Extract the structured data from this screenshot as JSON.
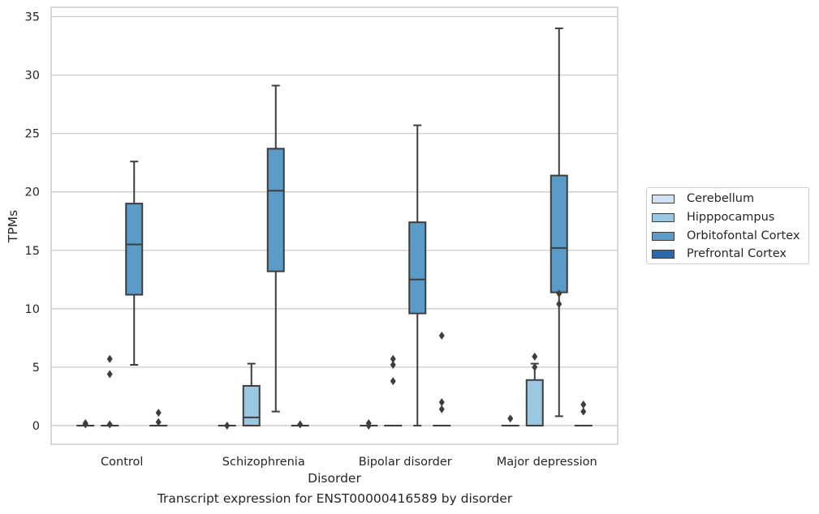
{
  "chart_data": {
    "type": "box",
    "title": "",
    "caption": "Transcript expression for ENST00000416589 by disorder",
    "xlabel": "Disorder",
    "ylabel": "TPMs",
    "ylim": [
      -1.6,
      35.8
    ],
    "yticks": [
      0,
      5,
      10,
      15,
      20,
      25,
      30,
      35
    ],
    "grid": "horizontal",
    "legend_position": "right",
    "categories": [
      "Control",
      "Schizophrenia",
      "Bipolar disorder",
      "Major depression"
    ],
    "series": [
      {
        "name": "Cerebellum",
        "color": "#d1e3f3",
        "boxes": [
          {
            "q1": 0,
            "median": 0,
            "q3": 0,
            "whisker_low": 0,
            "whisker_high": 0,
            "outliers": [
              0.2,
              0.1
            ]
          },
          {
            "q1": 0,
            "median": 0,
            "q3": 0,
            "whisker_low": 0,
            "whisker_high": 0,
            "outliers": [
              0
            ]
          },
          {
            "q1": 0,
            "median": 0,
            "q3": 0,
            "whisker_low": 0,
            "whisker_high": 0,
            "outliers": [
              0.2,
              0
            ]
          },
          {
            "q1": 0,
            "median": 0,
            "q3": 0,
            "whisker_low": 0,
            "whisker_high": 0,
            "outliers": [
              0.6
            ]
          }
        ]
      },
      {
        "name": "Hipppocampus",
        "color": "#9ac8e0",
        "boxes": [
          {
            "q1": 0,
            "median": 0,
            "q3": 0,
            "whisker_low": 0,
            "whisker_high": 0,
            "outliers": [
              5.7,
              4.4,
              0.1
            ]
          },
          {
            "q1": 0,
            "median": 0.7,
            "q3": 3.4,
            "whisker_low": 0,
            "whisker_high": 5.3,
            "outliers": []
          },
          {
            "q1": 0,
            "median": 0,
            "q3": 0,
            "whisker_low": 0,
            "whisker_high": 0,
            "outliers": [
              5.7,
              5.2,
              3.8
            ]
          },
          {
            "q1": 0,
            "median": 0,
            "q3": 3.9,
            "whisker_low": 0,
            "whisker_high": 5.3,
            "outliers": [
              5.9,
              5.0
            ]
          }
        ]
      },
      {
        "name": "Orbitofontal Cortex",
        "color": "#5a9bc8",
        "boxes": [
          {
            "q1": 11.2,
            "median": 15.5,
            "q3": 19.0,
            "whisker_low": 5.2,
            "whisker_high": 22.6,
            "outliers": []
          },
          {
            "q1": 13.2,
            "median": 20.1,
            "q3": 23.7,
            "whisker_low": 1.2,
            "whisker_high": 29.1,
            "outliers": []
          },
          {
            "q1": 9.6,
            "median": 12.5,
            "q3": 17.4,
            "whisker_low": 0,
            "whisker_high": 25.7,
            "outliers": []
          },
          {
            "q1": 11.4,
            "median": 15.2,
            "q3": 21.4,
            "whisker_low": 0.8,
            "whisker_high": 34.0,
            "outliers": [
              11.3,
              10.4
            ]
          }
        ]
      },
      {
        "name": "Prefrontal Cortex",
        "color": "#2a6aab",
        "boxes": [
          {
            "q1": 0,
            "median": 0,
            "q3": 0,
            "whisker_low": 0,
            "whisker_high": 0,
            "outliers": [
              1.1,
              0.3
            ]
          },
          {
            "q1": 0,
            "median": 0,
            "q3": 0,
            "whisker_low": 0,
            "whisker_high": 0,
            "outliers": [
              0.1
            ]
          },
          {
            "q1": 0,
            "median": 0,
            "q3": 0,
            "whisker_low": 0,
            "whisker_high": 0,
            "outliers": [
              7.7,
              2.0,
              1.4
            ]
          },
          {
            "q1": 0,
            "median": 0,
            "q3": 0,
            "whisker_low": 0,
            "whisker_high": 0,
            "outliers": [
              1.8,
              1.2
            ]
          }
        ]
      }
    ]
  }
}
